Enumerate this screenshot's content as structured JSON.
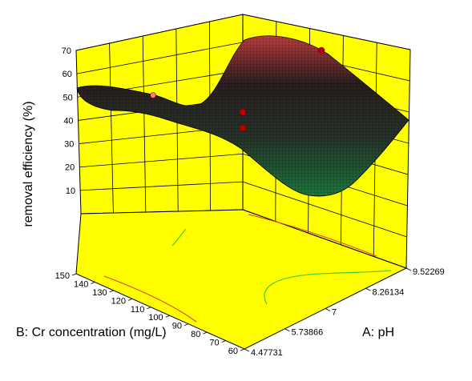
{
  "chart_data": {
    "type": "surface3d",
    "z_axis": {
      "label": "removal efficiency (%)",
      "ticks": [
        "10",
        "20",
        "30",
        "40",
        "50",
        "60",
        "70"
      ],
      "range": [
        0,
        70
      ]
    },
    "cr_axis": {
      "label": "B: Cr concentration (mg/L)",
      "ticks": [
        "60",
        "70",
        "80",
        "90",
        "100",
        "110",
        "120",
        "130",
        "140",
        "150"
      ],
      "range": [
        60,
        150
      ]
    },
    "ph_axis": {
      "label": "A: pH",
      "ticks": [
        "4.47731",
        "5.73866",
        "7",
        "8.26134",
        "9.52269"
      ],
      "range": [
        4.47731,
        9.52269
      ]
    },
    "design_points": [
      {
        "pH": 7.0,
        "cr": 150,
        "efficiency": 55
      },
      {
        "pH": 9.52,
        "cr": 105,
        "efficiency": 69
      },
      {
        "pH": 7.0,
        "cr": 105,
        "efficiency": 48
      },
      {
        "pH": 7.0,
        "cr": 105,
        "efficiency": 42
      }
    ],
    "colors": {
      "wall": "#ffff00",
      "surface_low": "#1a7a3a",
      "surface_high": "#d23030",
      "point": "#c00000",
      "contour_red": "#e8401a",
      "contour_green": "#33c633"
    }
  }
}
